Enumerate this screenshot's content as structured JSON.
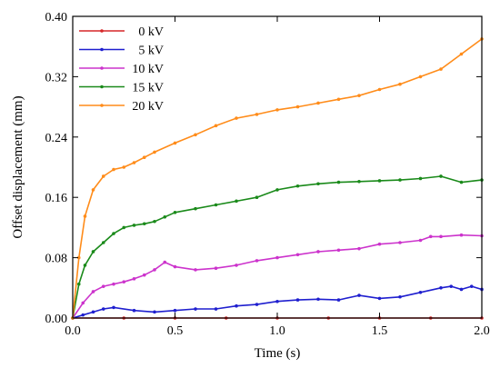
{
  "chart_data": {
    "type": "line",
    "xlabel": "Time (s)",
    "ylabel": "Offset displacement (mm)",
    "xlim": [
      0,
      2.0
    ],
    "ylim": [
      0,
      0.4
    ],
    "x_ticks": [
      "0.0",
      "0.5",
      "1.0",
      "1.5",
      "2.0"
    ],
    "y_ticks": [
      "0.00",
      "0.08",
      "0.16",
      "0.24",
      "0.32",
      "0.40"
    ],
    "grid": false,
    "legend_position": "top-left",
    "series": [
      {
        "name": "0 kV",
        "color": "#d62728",
        "x": [
          0,
          0.25,
          0.5,
          0.75,
          1.0,
          1.25,
          1.5,
          1.75,
          2.0
        ],
        "y": [
          0,
          0,
          0,
          0,
          0,
          0,
          0,
          0,
          0
        ]
      },
      {
        "name": "5 kV",
        "color": "#1f1fcf",
        "x": [
          0,
          0.05,
          0.1,
          0.15,
          0.2,
          0.3,
          0.4,
          0.5,
          0.6,
          0.7,
          0.8,
          0.9,
          1.0,
          1.1,
          1.2,
          1.3,
          1.4,
          1.5,
          1.6,
          1.7,
          1.8,
          1.85,
          1.9,
          1.95,
          2.0
        ],
        "y": [
          0,
          0.004,
          0.008,
          0.012,
          0.014,
          0.01,
          0.008,
          0.01,
          0.012,
          0.012,
          0.016,
          0.018,
          0.022,
          0.024,
          0.025,
          0.024,
          0.03,
          0.026,
          0.028,
          0.034,
          0.04,
          0.042,
          0.038,
          0.042,
          0.038
        ]
      },
      {
        "name": "10 kV",
        "color": "#cc33cc",
        "x": [
          0,
          0.05,
          0.1,
          0.15,
          0.2,
          0.25,
          0.3,
          0.35,
          0.4,
          0.45,
          0.5,
          0.6,
          0.7,
          0.8,
          0.9,
          1.0,
          1.1,
          1.2,
          1.3,
          1.4,
          1.5,
          1.6,
          1.7,
          1.75,
          1.8,
          1.9,
          2.0
        ],
        "y": [
          0,
          0.02,
          0.035,
          0.042,
          0.045,
          0.048,
          0.052,
          0.057,
          0.064,
          0.074,
          0.068,
          0.064,
          0.066,
          0.07,
          0.076,
          0.08,
          0.084,
          0.088,
          0.09,
          0.092,
          0.098,
          0.1,
          0.103,
          0.108,
          0.108,
          0.11,
          0.109
        ]
      },
      {
        "name": "15 kV",
        "color": "#1a8a1a",
        "x": [
          0,
          0.03,
          0.06,
          0.1,
          0.15,
          0.2,
          0.25,
          0.3,
          0.35,
          0.4,
          0.45,
          0.5,
          0.6,
          0.7,
          0.8,
          0.9,
          1.0,
          1.1,
          1.2,
          1.3,
          1.4,
          1.5,
          1.6,
          1.7,
          1.8,
          1.9,
          2.0
        ],
        "y": [
          0,
          0.045,
          0.07,
          0.088,
          0.1,
          0.112,
          0.12,
          0.123,
          0.125,
          0.128,
          0.134,
          0.14,
          0.145,
          0.15,
          0.155,
          0.16,
          0.17,
          0.175,
          0.178,
          0.18,
          0.181,
          0.182,
          0.183,
          0.185,
          0.188,
          0.18,
          0.183
        ]
      },
      {
        "name": "20 kV",
        "color": "#ff8c1a",
        "x": [
          0,
          0.03,
          0.06,
          0.1,
          0.15,
          0.2,
          0.25,
          0.3,
          0.35,
          0.4,
          0.5,
          0.6,
          0.7,
          0.8,
          0.9,
          1.0,
          1.1,
          1.2,
          1.3,
          1.4,
          1.5,
          1.6,
          1.7,
          1.8,
          1.9,
          2.0
        ],
        "y": [
          0,
          0.08,
          0.135,
          0.17,
          0.188,
          0.197,
          0.2,
          0.206,
          0.213,
          0.22,
          0.232,
          0.243,
          0.255,
          0.265,
          0.27,
          0.276,
          0.28,
          0.285,
          0.29,
          0.295,
          0.303,
          0.31,
          0.32,
          0.33,
          0.35,
          0.37
        ]
      }
    ]
  }
}
